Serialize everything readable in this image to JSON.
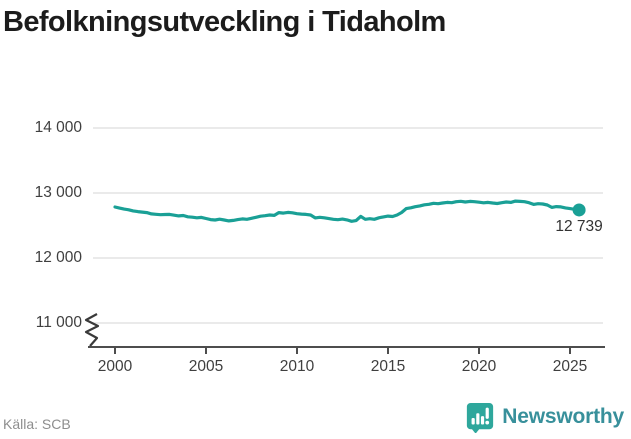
{
  "header": {
    "title": "Befolkningsutveckling i Tidaholm"
  },
  "footer": {
    "source": "Källa: SCB",
    "brand": "Newsworthy"
  },
  "colors": {
    "line": "#1aa096",
    "grid": "#e4e4e4",
    "axis": "#4d4d4d",
    "title": "#1c1c1c",
    "tick_text": "#3f3f3f",
    "source_text": "#8e8e8e",
    "logo_icon": "#2ea79c",
    "logo_text": "#38909b"
  },
  "chart_data": {
    "type": "line",
    "title": "Befolkningsutveckling i Tidaholm",
    "xlabel": "",
    "ylabel": "",
    "grid": "horizontal",
    "legend": "none",
    "axis_break_bottom_left": true,
    "x_ticks": {
      "values": [
        2000,
        2005,
        2010,
        2015,
        2020,
        2025
      ],
      "labels": [
        "2000",
        "2005",
        "2010",
        "2015",
        "2020",
        "2025"
      ]
    },
    "y_ticks": {
      "values": [
        14000,
        13000,
        12000,
        11000
      ],
      "labels": [
        "14 000",
        "13 000",
        "12 000",
        "11 000"
      ]
    },
    "xlim": [
      1998.5,
      2026.9
    ],
    "ylim": [
      10600,
      14550
    ],
    "end_point": {
      "x": 2025.5,
      "value": 12739,
      "label": "12 739"
    },
    "series": [
      {
        "name": "Befolkning",
        "color": "#1aa096",
        "x": [
          2000.0,
          2000.25,
          2000.5,
          2000.75,
          2001.0,
          2001.25,
          2001.5,
          2001.75,
          2002.0,
          2002.25,
          2002.5,
          2002.75,
          2003.0,
          2003.25,
          2003.5,
          2003.75,
          2004.0,
          2004.25,
          2004.5,
          2004.75,
          2005.0,
          2005.25,
          2005.5,
          2005.75,
          2006.0,
          2006.25,
          2006.5,
          2006.75,
          2007.0,
          2007.25,
          2007.5,
          2007.75,
          2008.0,
          2008.25,
          2008.5,
          2008.75,
          2009.0,
          2009.25,
          2009.5,
          2009.75,
          2010.0,
          2010.25,
          2010.5,
          2010.75,
          2011.0,
          2011.25,
          2011.5,
          2011.75,
          2012.0,
          2012.25,
          2012.5,
          2012.75,
          2013.0,
          2013.25,
          2013.5,
          2013.75,
          2014.0,
          2014.25,
          2014.5,
          2014.75,
          2015.0,
          2015.25,
          2015.5,
          2015.75,
          2016.0,
          2016.25,
          2016.5,
          2016.75,
          2017.0,
          2017.25,
          2017.5,
          2017.75,
          2018.0,
          2018.25,
          2018.5,
          2018.75,
          2019.0,
          2019.25,
          2019.5,
          2019.75,
          2020.0,
          2020.25,
          2020.5,
          2020.75,
          2021.0,
          2021.25,
          2021.5,
          2021.75,
          2022.0,
          2022.25,
          2022.5,
          2022.75,
          2023.0,
          2023.25,
          2023.5,
          2023.75,
          2024.0,
          2024.25,
          2024.5,
          2024.75,
          2025.0,
          2025.25,
          2025.5
        ],
        "values": [
          12784,
          12768,
          12752,
          12741,
          12725,
          12714,
          12706,
          12698,
          12679,
          12672,
          12666,
          12669,
          12671,
          12659,
          12648,
          12654,
          12634,
          12628,
          12619,
          12624,
          12607,
          12591,
          12585,
          12597,
          12585,
          12571,
          12579,
          12591,
          12602,
          12596,
          12611,
          12626,
          12643,
          12651,
          12661,
          12656,
          12699,
          12691,
          12701,
          12696,
          12682,
          12676,
          12671,
          12661,
          12617,
          12626,
          12619,
          12606,
          12596,
          12589,
          12598,
          12586,
          12565,
          12576,
          12640,
          12595,
          12605,
          12595,
          12618,
          12632,
          12645,
          12638,
          12662,
          12700,
          12760,
          12772,
          12790,
          12802,
          12818,
          12826,
          12841,
          12836,
          12846,
          12856,
          12851,
          12866,
          12873,
          12861,
          12871,
          12866,
          12858,
          12850,
          12856,
          12846,
          12839,
          12851,
          12861,
          12856,
          12876,
          12871,
          12866,
          12851,
          12825,
          12836,
          12831,
          12816,
          12779,
          12791,
          12786,
          12771,
          12760,
          12750,
          12739
        ]
      }
    ]
  }
}
